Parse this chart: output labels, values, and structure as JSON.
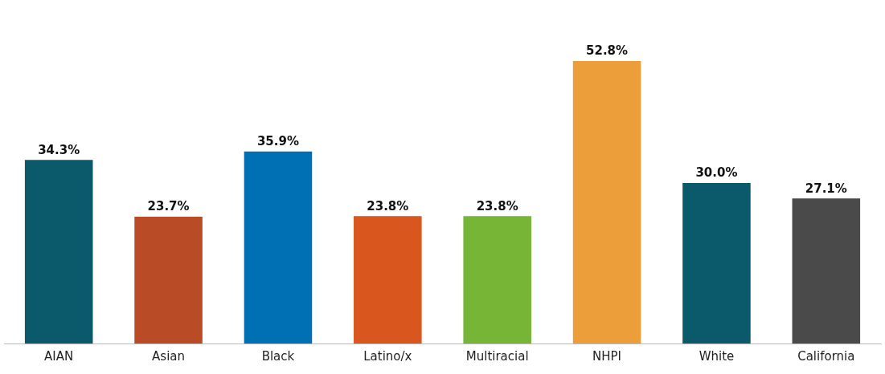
{
  "chart_data": {
    "type": "bar",
    "categories": [
      "AIAN",
      "Asian",
      "Black",
      "Latino/x",
      "Multiracial",
      "NHPI",
      "White",
      "California"
    ],
    "values": [
      34.3,
      23.7,
      35.9,
      23.8,
      23.8,
      52.8,
      30.0,
      27.1
    ],
    "value_labels": [
      "34.3%",
      "23.7%",
      "35.9%",
      "23.8%",
      "23.8%",
      "52.8%",
      "30.0%",
      "27.1%"
    ],
    "colors": [
      "#0b5a6b",
      "#b94c27",
      "#0070b5",
      "#d9561f",
      "#76b535",
      "#eb9e3a",
      "#0b5a6b",
      "#4a4a4a"
    ]
  }
}
